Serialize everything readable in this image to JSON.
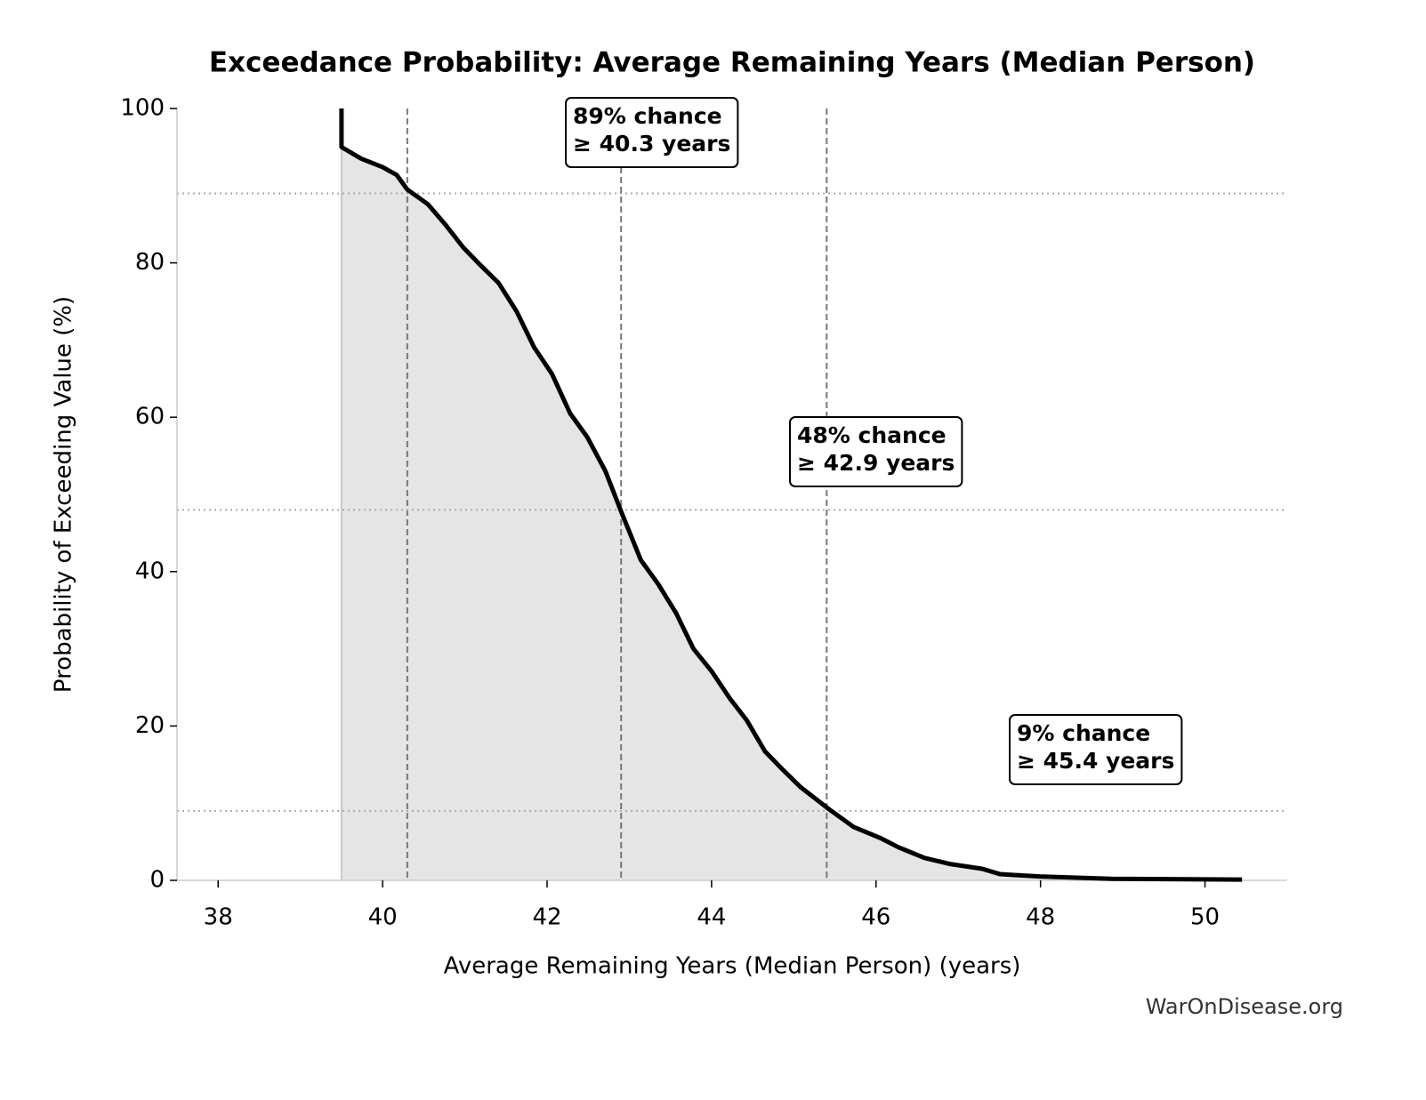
{
  "chart_data": {
    "type": "line",
    "title": "Exceedance Probability: Average Remaining Years (Median Person)",
    "xlabel": "Average Remaining Years (Median Person) (years)",
    "ylabel": "Probability of Exceeding Value (%)",
    "watermark": "WarOnDisease.org",
    "xlim": [
      37.5,
      51
    ],
    "xticks": [
      38,
      40,
      42,
      44,
      46,
      48,
      50
    ],
    "ylim": [
      0,
      100
    ],
    "yticks": [
      0,
      20,
      40,
      60,
      80,
      100
    ],
    "color": "#000000",
    "fill_color": "#e5e5e5",
    "x": [
      39.5,
      39.5,
      39.74,
      40.0,
      40.17,
      40.3,
      40.55,
      40.76,
      40.98,
      41.19,
      41.41,
      41.63,
      41.84,
      42.06,
      42.28,
      42.49,
      42.71,
      42.9,
      43.14,
      43.35,
      43.57,
      43.78,
      44.0,
      44.22,
      44.43,
      44.65,
      44.86,
      45.08,
      45.43,
      45.73,
      46.05,
      46.27,
      46.59,
      46.91,
      47.29,
      47.51,
      47.99,
      48.86,
      50.45
    ],
    "values": [
      100,
      95,
      93.5,
      92.4,
      91.4,
      89.5,
      87.6,
      85.0,
      82.0,
      79.7,
      77.4,
      73.7,
      69.1,
      65.6,
      60.5,
      57.4,
      53.0,
      47.8,
      41.5,
      38.4,
      34.6,
      30.0,
      27.1,
      23.6,
      20.7,
      16.7,
      14.4,
      12.1,
      9.2,
      6.9,
      5.5,
      4.3,
      2.9,
      2.1,
      1.5,
      0.8,
      0.5,
      0.2,
      0.1
    ],
    "annotations": [
      {
        "probability": 89,
        "threshold": 40.3,
        "lines": [
          "89% chance",
          "≥ 40.3 years"
        ]
      },
      {
        "probability": 48,
        "threshold": 42.9,
        "lines": [
          "48% chance",
          "≥ 42.9 years"
        ]
      },
      {
        "probability": 9,
        "threshold": 45.4,
        "lines": [
          "9% chance",
          "≥ 45.4 years"
        ]
      }
    ]
  }
}
